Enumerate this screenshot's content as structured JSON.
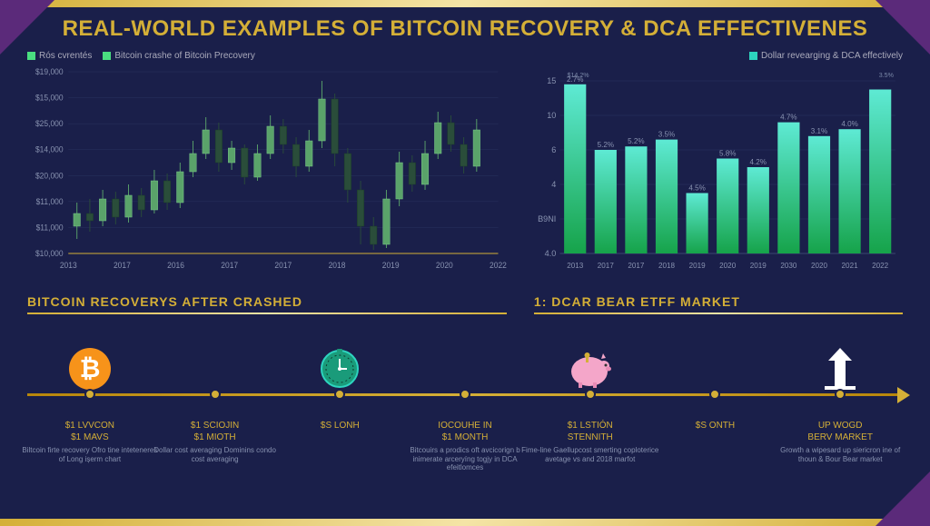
{
  "title": "REAL-WORLD EXAMPLES OF BITCOIN RECOVERY & DCA EFFECTIVENES",
  "colors": {
    "bg": "#1a1f4a",
    "gold": "#d4af37",
    "gold_light": "#f4e4a6",
    "purple": "#5b2a7a",
    "text_muted": "#8892b0",
    "candle_green": "#5aa36a",
    "candle_dark": "#2a4d3a",
    "bar_top": "#5eead4",
    "bar_bottom": "#16a34a"
  },
  "left_chart": {
    "legend": [
      "Rós cvrentés",
      "Bitcoin crashe of Bitcoin Precovery"
    ],
    "y_ticks": [
      "$19,000",
      "$15,000",
      "$25,000",
      "$14,000",
      "$20,000",
      "$11,000",
      "$11,000",
      "$10,000"
    ],
    "x_ticks": [
      "2013",
      "2017",
      "2016",
      "2017",
      "2017",
      "2018",
      "2019",
      "2020",
      "2022"
    ],
    "ylim": [
      10000,
      19000
    ],
    "candles": [
      {
        "x": 0.02,
        "o": 0.15,
        "c": 0.22,
        "l": 0.08,
        "h": 0.28,
        "up": true
      },
      {
        "x": 0.05,
        "o": 0.22,
        "c": 0.18,
        "l": 0.12,
        "h": 0.3,
        "up": false
      },
      {
        "x": 0.08,
        "o": 0.18,
        "c": 0.3,
        "l": 0.15,
        "h": 0.35,
        "up": true
      },
      {
        "x": 0.11,
        "o": 0.3,
        "c": 0.2,
        "l": 0.16,
        "h": 0.34,
        "up": false
      },
      {
        "x": 0.14,
        "o": 0.2,
        "c": 0.32,
        "l": 0.17,
        "h": 0.38,
        "up": true
      },
      {
        "x": 0.17,
        "o": 0.32,
        "c": 0.24,
        "l": 0.2,
        "h": 0.36,
        "up": false
      },
      {
        "x": 0.2,
        "o": 0.24,
        "c": 0.4,
        "l": 0.22,
        "h": 0.46,
        "up": true
      },
      {
        "x": 0.23,
        "o": 0.4,
        "c": 0.28,
        "l": 0.24,
        "h": 0.44,
        "up": false
      },
      {
        "x": 0.26,
        "o": 0.28,
        "c": 0.45,
        "l": 0.25,
        "h": 0.5,
        "up": true
      },
      {
        "x": 0.29,
        "o": 0.45,
        "c": 0.55,
        "l": 0.42,
        "h": 0.62,
        "up": true
      },
      {
        "x": 0.32,
        "o": 0.55,
        "c": 0.68,
        "l": 0.52,
        "h": 0.75,
        "up": true
      },
      {
        "x": 0.35,
        "o": 0.68,
        "c": 0.5,
        "l": 0.45,
        "h": 0.72,
        "up": false
      },
      {
        "x": 0.38,
        "o": 0.5,
        "c": 0.58,
        "l": 0.46,
        "h": 0.62,
        "up": true
      },
      {
        "x": 0.41,
        "o": 0.58,
        "c": 0.42,
        "l": 0.38,
        "h": 0.6,
        "up": false
      },
      {
        "x": 0.44,
        "o": 0.42,
        "c": 0.55,
        "l": 0.4,
        "h": 0.6,
        "up": true
      },
      {
        "x": 0.47,
        "o": 0.55,
        "c": 0.7,
        "l": 0.52,
        "h": 0.76,
        "up": true
      },
      {
        "x": 0.5,
        "o": 0.7,
        "c": 0.6,
        "l": 0.55,
        "h": 0.74,
        "up": false
      },
      {
        "x": 0.53,
        "o": 0.6,
        "c": 0.48,
        "l": 0.42,
        "h": 0.64,
        "up": false
      },
      {
        "x": 0.56,
        "o": 0.48,
        "c": 0.62,
        "l": 0.45,
        "h": 0.68,
        "up": true
      },
      {
        "x": 0.59,
        "o": 0.62,
        "c": 0.85,
        "l": 0.58,
        "h": 0.95,
        "up": true
      },
      {
        "x": 0.62,
        "o": 0.85,
        "c": 0.55,
        "l": 0.48,
        "h": 0.88,
        "up": false
      },
      {
        "x": 0.65,
        "o": 0.55,
        "c": 0.35,
        "l": 0.28,
        "h": 0.58,
        "up": false
      },
      {
        "x": 0.68,
        "o": 0.35,
        "c": 0.15,
        "l": 0.05,
        "h": 0.4,
        "up": false
      },
      {
        "x": 0.71,
        "o": 0.15,
        "c": 0.05,
        "l": 0.02,
        "h": 0.2,
        "up": false
      },
      {
        "x": 0.74,
        "o": 0.05,
        "c": 0.3,
        "l": 0.03,
        "h": 0.35,
        "up": true
      },
      {
        "x": 0.77,
        "o": 0.3,
        "c": 0.5,
        "l": 0.26,
        "h": 0.56,
        "up": true
      },
      {
        "x": 0.8,
        "o": 0.5,
        "c": 0.38,
        "l": 0.34,
        "h": 0.54,
        "up": false
      },
      {
        "x": 0.83,
        "o": 0.38,
        "c": 0.55,
        "l": 0.35,
        "h": 0.62,
        "up": true
      },
      {
        "x": 0.86,
        "o": 0.55,
        "c": 0.72,
        "l": 0.52,
        "h": 0.78,
        "up": true
      },
      {
        "x": 0.89,
        "o": 0.72,
        "c": 0.6,
        "l": 0.56,
        "h": 0.76,
        "up": false
      },
      {
        "x": 0.92,
        "o": 0.6,
        "c": 0.48,
        "l": 0.44,
        "h": 0.64,
        "up": false
      },
      {
        "x": 0.95,
        "o": 0.48,
        "c": 0.68,
        "l": 0.45,
        "h": 0.74,
        "up": true
      }
    ]
  },
  "right_chart": {
    "legend": "Dollar revearging & DCA effectively",
    "top_label": "$14.2%",
    "end_label": "3.5%",
    "y_ticks": [
      "15",
      "10",
      "6",
      "4",
      "B9NI",
      "4.0"
    ],
    "x_ticks": [
      "2013",
      "2017",
      "2017",
      "2018",
      "2019",
      "2020",
      "2019",
      "2030",
      "2020",
      "2021",
      "2022"
    ],
    "bars": [
      {
        "h": 0.98,
        "label": "2.7%"
      },
      {
        "h": 0.6,
        "label": "5.2%"
      },
      {
        "h": 0.62,
        "label": "5.2%"
      },
      {
        "h": 0.66,
        "label": "3.5%"
      },
      {
        "h": 0.35,
        "label": "4.5%"
      },
      {
        "h": 0.55,
        "label": "5.8%"
      },
      {
        "h": 0.5,
        "label": "4.2%"
      },
      {
        "h": 0.76,
        "label": "4.7%"
      },
      {
        "h": 0.68,
        "label": "3.1%"
      },
      {
        "h": 0.72,
        "label": "4.0%"
      },
      {
        "h": 0.95,
        "label": ""
      }
    ]
  },
  "sections": {
    "left": "BITCOIN RECOVERYS AFTER CRASHED",
    "right": "1: DCAR BEAR ETFF MARKET"
  },
  "timeline": [
    {
      "icon": "bitcoin",
      "line1": "$1 LVVCON",
      "line2": "$1 MAVS",
      "caption": "Biltcoin firte recovery Ofro tine inteteneres of Long ișerm chart"
    },
    {
      "icon": "none",
      "line1": "$1 SCIOJIN",
      "line2": "$1 MIOTH",
      "caption": "Dollar cost averaging Dominins condo cost averaging"
    },
    {
      "icon": "clock",
      "line1": "$S LONH",
      "line2": "",
      "caption": ""
    },
    {
      "icon": "none",
      "line1": "IOCOUHE IN",
      "line2": "$1 MONTH",
      "caption": "Bitcouirs a prodics oft avcicorign b inimerate arceryíng togjy in DCA efeitlomces"
    },
    {
      "icon": "pig",
      "line1": "$1 LSTIÓN",
      "line2": "STENNITH",
      "caption": "Fime-line Gaellupcost smerting coploterice avetage vs and 2018 marfot"
    },
    {
      "icon": "none",
      "line1": "$S ONTH",
      "line2": "",
      "caption": ""
    },
    {
      "icon": "arrow",
      "line1": "UP WOGD",
      "line2": "BERV MARKET",
      "caption": "Growth a wipesard up siericron ine of thoun & Bour Bear market"
    }
  ]
}
